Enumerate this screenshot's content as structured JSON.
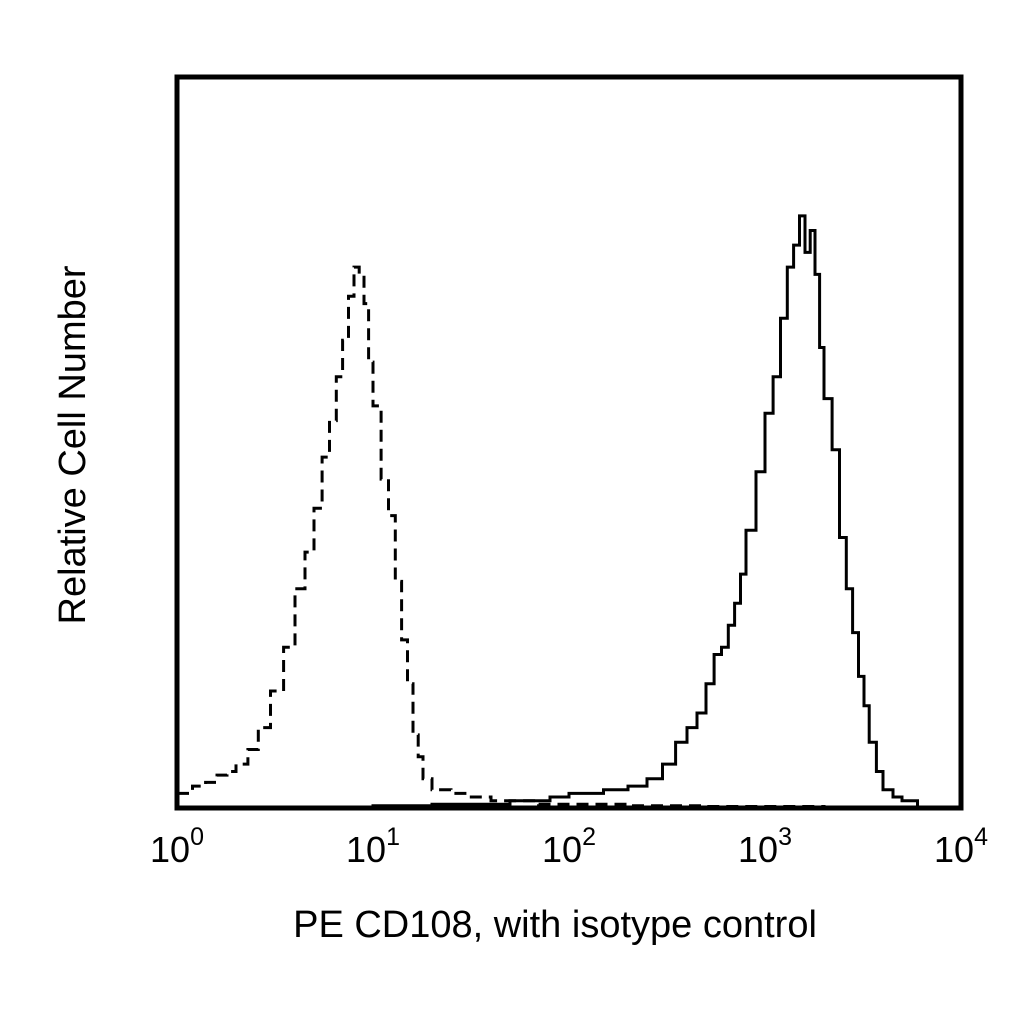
{
  "chart_data": {
    "type": "histogram",
    "title": "",
    "xlabel": "PE CD108, with isotype control",
    "ylabel": "Relative Cell Number",
    "x_scale": "log",
    "xlim": [
      1,
      10000
    ],
    "ylim": [
      0,
      100
    ],
    "x_ticks": [
      {
        "base": "10",
        "exp": "0",
        "value": 1
      },
      {
        "base": "10",
        "exp": "1",
        "value": 10
      },
      {
        "base": "10",
        "exp": "2",
        "value": 100
      },
      {
        "base": "10",
        "exp": "3",
        "value": 1000
      },
      {
        "base": "10",
        "exp": "4",
        "value": 10000
      }
    ],
    "y_ticks": [],
    "grid": false,
    "legend": "none",
    "series": [
      {
        "style": "dashed",
        "color": "#000000",
        "x": [
          1.0,
          1.2,
          1.4,
          1.6,
          1.8,
          2.0,
          2.3,
          2.6,
          3.0,
          3.5,
          4.0,
          4.5,
          5.0,
          5.5,
          6.0,
          6.5,
          7.0,
          7.5,
          8.0,
          8.5,
          9.0,
          9.5,
          10.0,
          11.0,
          12.0,
          13.0,
          14.0,
          15.0,
          16.0,
          17.0,
          18.0,
          20.0,
          25.0,
          30.0,
          40.0,
          50.0,
          70.0,
          100.0,
          200.0,
          500.0,
          1000.0,
          2000.0,
          5000.0
        ],
        "values": [
          2.0,
          3.0,
          3.5,
          4.5,
          5.0,
          6.0,
          8.0,
          11.0,
          16.0,
          22.0,
          30.0,
          35.0,
          41.0,
          48.0,
          53.0,
          59.0,
          64.0,
          70.0,
          74.0,
          73.0,
          69.0,
          61.0,
          55.0,
          45.0,
          40.0,
          31.0,
          23.0,
          17.0,
          10.0,
          7.0,
          4.0,
          2.5,
          2.0,
          1.5,
          1.0,
          1.0,
          0.5,
          0.5,
          0.3,
          0.2,
          0.2,
          0.1,
          0.0
        ]
      },
      {
        "style": "solid",
        "color": "#000000",
        "x": [
          1.0,
          10.0,
          20.0,
          30.0,
          50.0,
          80.0,
          100.0,
          150.0,
          200.0,
          250.0,
          300.0,
          350.0,
          400.0,
          450.0,
          500.0,
          550.0,
          600.0,
          650.0,
          700.0,
          750.0,
          800.0,
          900.0,
          1000.0,
          1100.0,
          1200.0,
          1300.0,
          1400.0,
          1500.0,
          1600.0,
          1700.0,
          1800.0,
          1900.0,
          2000.0,
          2200.0,
          2400.0,
          2600.0,
          2800.0,
          3000.0,
          3200.0,
          3400.0,
          3700.0,
          4000.0,
          4500.0,
          5000.0,
          6000.0
        ],
        "values": [
          0.0,
          0.3,
          0.5,
          0.5,
          1.0,
          1.5,
          2.0,
          2.5,
          3.0,
          4.0,
          6.0,
          9.0,
          11.0,
          13.0,
          17.0,
          21.0,
          22.0,
          25.0,
          28.0,
          32.0,
          38.0,
          46.0,
          54.0,
          59.0,
          67.0,
          74.0,
          77.0,
          81.0,
          76.0,
          79.0,
          73.0,
          63.0,
          56.0,
          49.0,
          37.0,
          30.0,
          24.0,
          18.0,
          14.0,
          9.0,
          5.0,
          2.5,
          1.5,
          1.0,
          0.0
        ]
      }
    ]
  }
}
